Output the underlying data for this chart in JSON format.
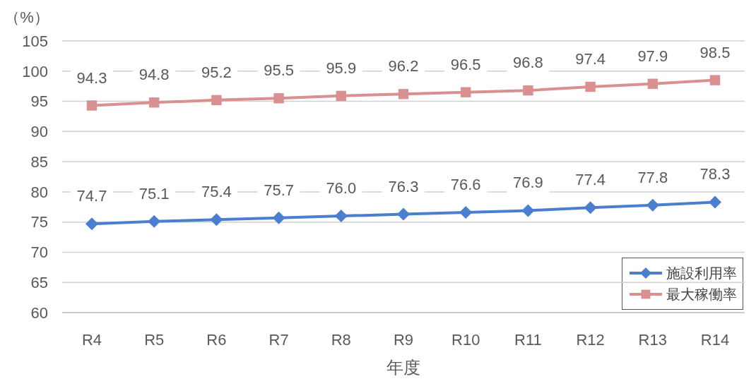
{
  "chart_data": {
    "type": "line",
    "xlabel": "年度",
    "ylabel": "（%）",
    "categories": [
      "R4",
      "R5",
      "R6",
      "R7",
      "R8",
      "R9",
      "R10",
      "R11",
      "R12",
      "R13",
      "R14"
    ],
    "series": [
      {
        "name": "施設利用率",
        "color": "#4a7fd0",
        "marker": "diamond",
        "values": [
          74.7,
          75.1,
          75.4,
          75.7,
          76.0,
          76.3,
          76.6,
          76.9,
          77.4,
          77.8,
          78.3
        ],
        "value_labels": [
          "74.7",
          "75.1",
          "75.4",
          "75.7",
          "76.0",
          "76.3",
          "76.6",
          "76.9",
          "77.4",
          "77.8",
          "78.3"
        ]
      },
      {
        "name": "最大稼働率",
        "color": "#d99090",
        "marker": "square",
        "values": [
          94.3,
          94.8,
          95.2,
          95.5,
          95.9,
          96.2,
          96.5,
          96.8,
          97.4,
          97.9,
          98.5
        ],
        "value_labels": [
          "94.3",
          "94.8",
          "95.2",
          "95.5",
          "95.9",
          "96.2",
          "96.5",
          "96.8",
          "97.4",
          "97.9",
          "98.5"
        ]
      }
    ],
    "ylim": [
      60,
      105
    ],
    "yticks": [
      60,
      65,
      70,
      75,
      80,
      85,
      90,
      95,
      100,
      105
    ],
    "grid": "y",
    "legend": "bottom right",
    "line_style": "solid"
  }
}
